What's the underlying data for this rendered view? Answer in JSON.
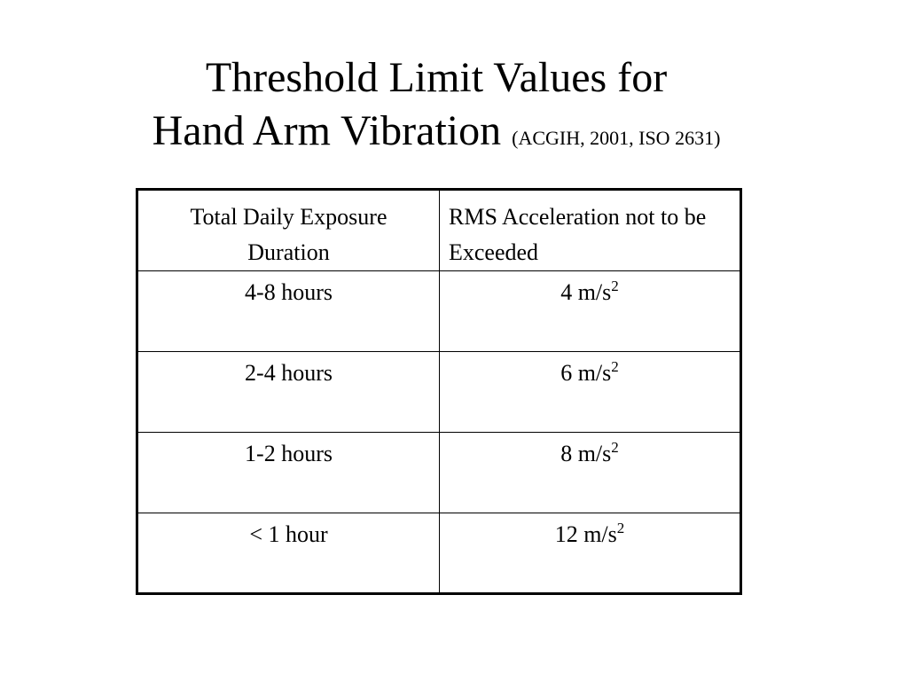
{
  "title": {
    "line1": "Threshold Limit Values for",
    "line2": "Hand Arm Vibration",
    "citation": "(ACGIH, 2001, ISO 2631)"
  },
  "table": {
    "headers": [
      "Total Daily Exposure Duration",
      "RMS Acceleration not to be Exceeded"
    ],
    "unit_base": "m/s",
    "unit_exponent": "2",
    "rows": [
      {
        "duration": "4-8 hours",
        "value": "4"
      },
      {
        "duration": "2-4 hours",
        "value": "6"
      },
      {
        "duration": "1-2 hours",
        "value": "8"
      },
      {
        "duration": "< 1 hour",
        "value": "12"
      }
    ]
  }
}
